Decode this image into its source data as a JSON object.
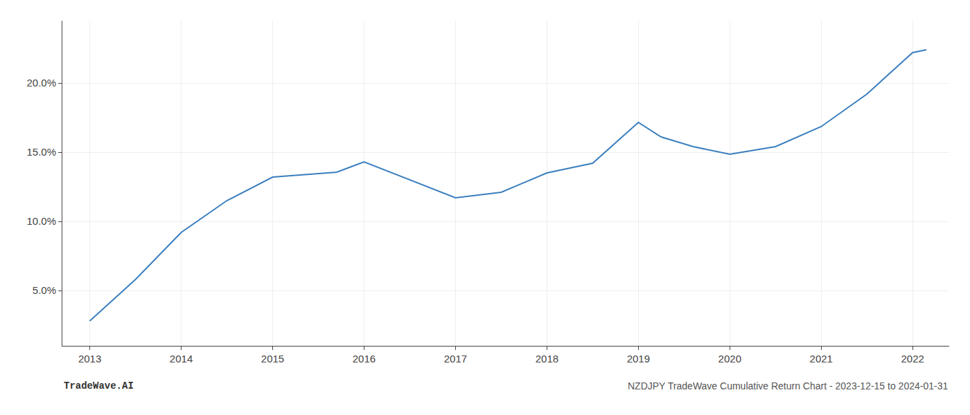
{
  "chart_data": {
    "type": "line",
    "x": [
      2013.0,
      2013.5,
      2014.0,
      2014.5,
      2015.0,
      2015.3,
      2015.7,
      2016.0,
      2016.5,
      2017.0,
      2017.5,
      2018.0,
      2018.5,
      2019.0,
      2019.25,
      2019.6,
      2020.0,
      2020.5,
      2021.0,
      2021.5,
      2022.0,
      2022.15
    ],
    "values": [
      2.8,
      5.8,
      9.2,
      11.5,
      13.2,
      13.35,
      13.55,
      14.3,
      13.0,
      11.7,
      12.1,
      13.5,
      14.2,
      17.15,
      16.1,
      15.4,
      14.85,
      15.4,
      16.85,
      19.2,
      22.2,
      22.4
    ],
    "color": "#3a7ebf",
    "xlim": [
      2012.7,
      2022.4
    ],
    "xticks": [
      2013,
      2014,
      2015,
      2016,
      2017,
      2018,
      2019,
      2020,
      2021,
      2022
    ],
    "ylim": [
      1.0,
      24.5
    ],
    "yticks": [
      {
        "value": 5.0,
        "label": "5.0%"
      },
      {
        "value": 10.0,
        "label": "10.0%"
      },
      {
        "value": 15.0,
        "label": "15.0%"
      },
      {
        "value": 20.0,
        "label": "20.0%"
      }
    ],
    "grid": true,
    "annotations": [
      "TradeWave.AI",
      "NZDJPY TradeWave Cumulative Return Chart - 2023-12-15 to 2024-01-31"
    ]
  }
}
